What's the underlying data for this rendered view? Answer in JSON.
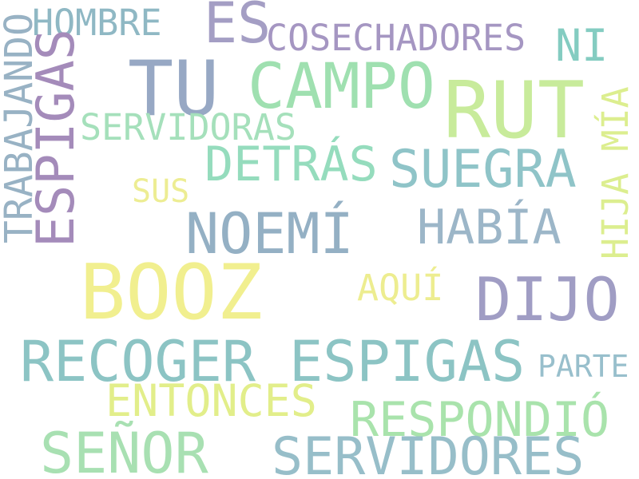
{
  "words": {
    "hombre": {
      "text": "HOMBRE",
      "color": "#8fb8c4"
    },
    "es": {
      "text": "ES",
      "color": "#a49ec4"
    },
    "cosechadores": {
      "text": "COSECHADORES",
      "color": "#a596c2"
    },
    "ni": {
      "text": "NI",
      "color": "#84ccc1"
    },
    "tu": {
      "text": "TU",
      "color": "#97a8c4"
    },
    "campo": {
      "text": "CAMPO",
      "color": "#9fe0b0"
    },
    "rut": {
      "text": "RUT",
      "color": "#c8eb9b"
    },
    "servidoras": {
      "text": "SERVIDORAS",
      "color": "#a5e0bb"
    },
    "detras": {
      "text": "DETRÁS",
      "color": "#95dcbd"
    },
    "suegra": {
      "text": "SUEGRA",
      "color": "#8fc4c8"
    },
    "sus": {
      "text": "SUS",
      "color": "#eded93"
    },
    "noemi": {
      "text": "NOEMÍ",
      "color": "#94b0c4"
    },
    "habia": {
      "text": "HABÍA",
      "color": "#9cb6c8"
    },
    "booz": {
      "text": "BOOZ",
      "color": "#f1ef8f"
    },
    "aqui": {
      "text": "AQUÍ",
      "color": "#eded90"
    },
    "dijo": {
      "text": "DIJO",
      "color": "#a09dc4"
    },
    "recoger": {
      "text": "RECOGER ESPIGAS",
      "color": "#8cc4c4"
    },
    "parte": {
      "text": "PARTE",
      "color": "#98bfcc"
    },
    "entonces": {
      "text": "ENTONCES",
      "color": "#e2ee8a"
    },
    "respondio": {
      "text": "RESPONDIÓ",
      "color": "#a9e3ac"
    },
    "senor": {
      "text": "SEÑOR",
      "color": "#a8e0b2"
    },
    "servidores": {
      "text": "SERVIDORES",
      "color": "#97bec9"
    },
    "trabajando": {
      "text": "TRABAJANDO",
      "color": "#98b2c4"
    },
    "espigas": {
      "text": "ESPIGAS",
      "color": "#a48bba"
    },
    "hijamia": {
      "text": "HIJA MÍA",
      "color": "#dcee8f"
    }
  }
}
